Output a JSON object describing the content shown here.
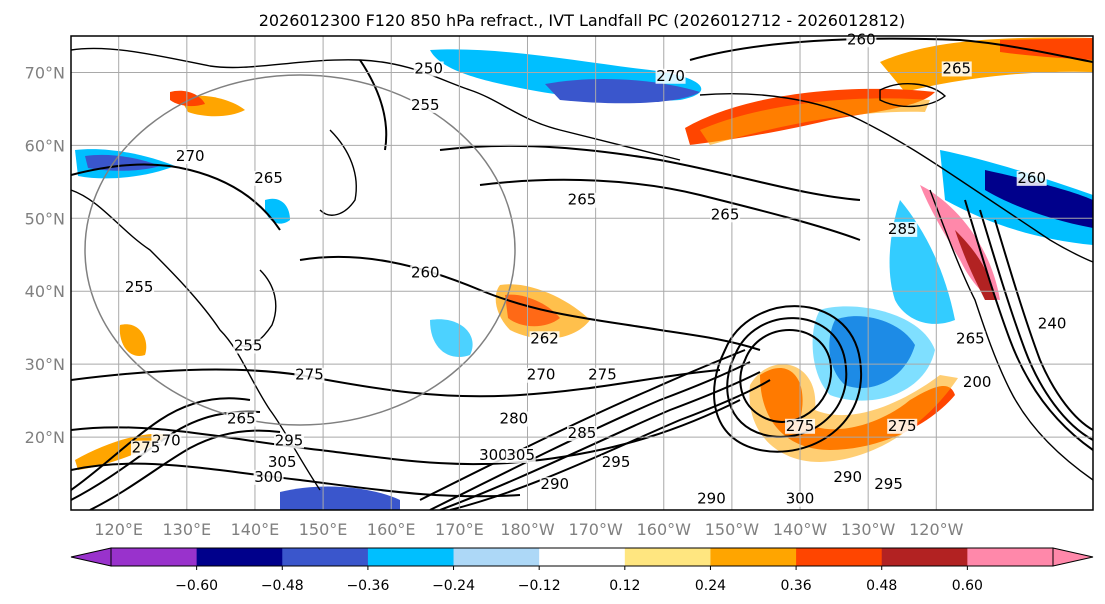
{
  "title": "2026012300 F120 850 hPa refract., IVT Landfall PC (2026012712 - 2026012812)",
  "map": {
    "lon_labels": [
      "120°E",
      "130°E",
      "140°E",
      "150°E",
      "160°E",
      "170°E",
      "180°W",
      "170°W",
      "160°W",
      "150°W",
      "140°W",
      "130°W",
      "120°W"
    ],
    "lat_labels": [
      "70°N",
      "60°N",
      "50°N",
      "40°N",
      "30°N",
      "20°N"
    ],
    "contour_labels": [
      {
        "text": "260",
        "lon": 229,
        "lat": 74
      },
      {
        "text": "270",
        "lon": 201,
        "lat": 69
      },
      {
        "text": "265",
        "lon": 243,
        "lat": 70
      },
      {
        "text": "250",
        "lon": 165.5,
        "lat": 70
      },
      {
        "text": "255",
        "lon": 165,
        "lat": 65
      },
      {
        "text": "270",
        "lon": 130.5,
        "lat": 58
      },
      {
        "text": "265",
        "lon": 142,
        "lat": 55
      },
      {
        "text": "265",
        "lon": 188,
        "lat": 52
      },
      {
        "text": "265",
        "lon": 209,
        "lat": 50
      },
      {
        "text": "260",
        "lon": 165,
        "lat": 42
      },
      {
        "text": "255",
        "lon": 123,
        "lat": 40
      },
      {
        "text": "255",
        "lon": 139,
        "lat": 32
      },
      {
        "text": "275",
        "lon": 148,
        "lat": 28
      },
      {
        "text": "280",
        "lon": 178,
        "lat": 22
      },
      {
        "text": "285",
        "lon": 188,
        "lat": 20
      },
      {
        "text": "270",
        "lon": 182,
        "lat": 28
      },
      {
        "text": "275",
        "lon": 191,
        "lat": 28
      },
      {
        "text": "262",
        "lon": 182.5,
        "lat": 33
      },
      {
        "text": "265",
        "lon": 138,
        "lat": 22
      },
      {
        "text": "270",
        "lon": 127,
        "lat": 19
      },
      {
        "text": "275",
        "lon": 124,
        "lat": 18
      },
      {
        "text": "295",
        "lon": 145,
        "lat": 19
      },
      {
        "text": "300",
        "lon": 142,
        "lat": 14
      },
      {
        "text": "305",
        "lon": 144,
        "lat": 16
      },
      {
        "text": "300",
        "lon": 175,
        "lat": 17
      },
      {
        "text": "305",
        "lon": 179,
        "lat": 17
      },
      {
        "text": "295",
        "lon": 193,
        "lat": 16
      },
      {
        "text": "290",
        "lon": 184,
        "lat": 13
      },
      {
        "text": "290",
        "lon": 207,
        "lat": 11
      },
      {
        "text": "290",
        "lon": 227,
        "lat": 14
      },
      {
        "text": "295",
        "lon": 233,
        "lat": 13
      },
      {
        "text": "300",
        "lon": 220,
        "lat": 11
      },
      {
        "text": "275",
        "lon": 220,
        "lat": 21
      },
      {
        "text": "275",
        "lon": 235,
        "lat": 21
      },
      {
        "text": "285",
        "lon": 235,
        "lat": 48
      },
      {
        "text": "260",
        "lon": 254,
        "lat": 55
      },
      {
        "text": "240",
        "lon": 257,
        "lat": 35
      },
      {
        "text": "200",
        "lon": 246,
        "lat": 27
      },
      {
        "text": "265",
        "lon": 245,
        "lat": 33
      }
    ]
  },
  "colorbar": {
    "tick_labels": [
      "−0.60",
      "−0.48",
      "−0.36",
      "−0.24",
      "−0.12",
      "0.12",
      "0.24",
      "0.36",
      "0.48",
      "0.60"
    ],
    "colors": {
      "below": "#9932cc",
      "bins": [
        "#9932cc",
        "#00008b",
        "#3a56cc",
        "#00bfff",
        "#add8f7",
        "#ffffff",
        "#ffe680",
        "#ffa500",
        "#ff4500",
        "#b22222",
        "#ff88aa"
      ],
      "above": "#ff88aa"
    }
  }
}
